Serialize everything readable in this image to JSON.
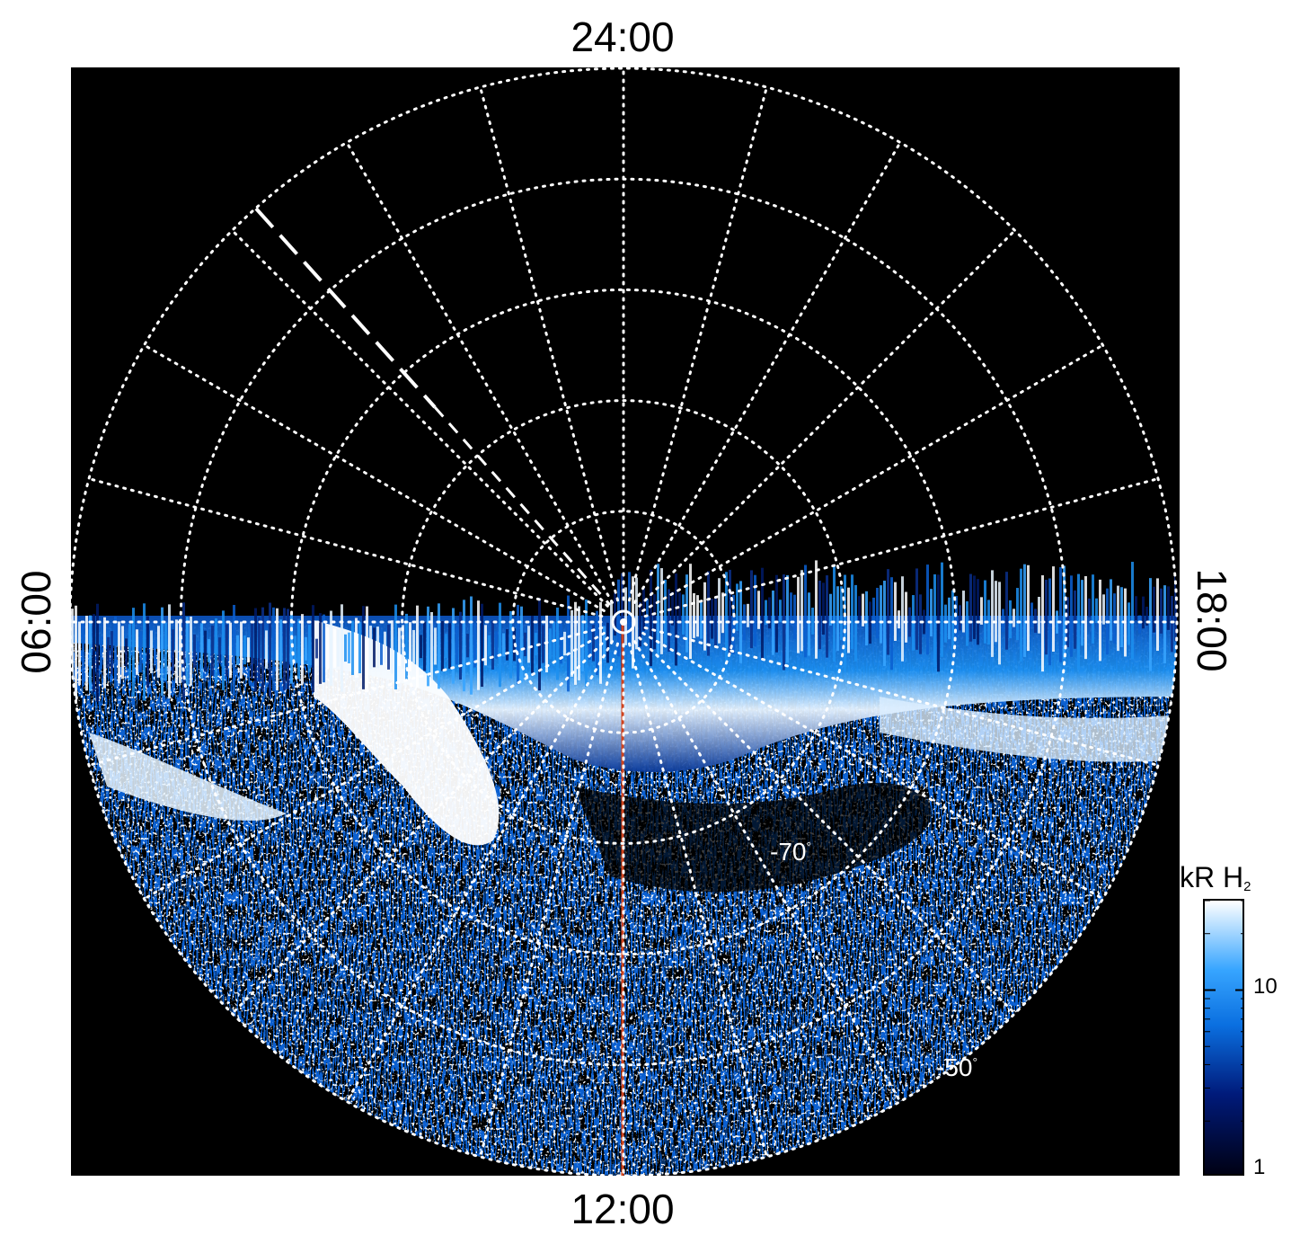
{
  "chart_data": {
    "type": "heatmap",
    "projection": "polar (south pole view)",
    "local_time_labels": {
      "top": "24:00",
      "bottom": "12:00",
      "left": "06:00",
      "right": "18:00"
    },
    "latitude_labels": [
      {
        "text": "-70",
        "unit": "°"
      },
      {
        "text": "-50",
        "unit": "°"
      }
    ],
    "grid": {
      "latitude_circles_deg": [
        -80,
        -70,
        -60,
        -50,
        -40
      ],
      "local_time_spokes_hours": [
        0,
        1,
        2,
        3,
        4,
        5,
        6,
        7,
        8,
        9,
        10,
        11,
        12,
        13,
        14,
        15,
        16,
        17,
        18,
        19,
        20,
        21,
        22,
        23
      ],
      "style": "white dotted"
    },
    "colorbar": {
      "title": "kR H",
      "title_subscript": "2",
      "scale": "log",
      "range": [
        1,
        30
      ],
      "ticks": [
        "1",
        "10"
      ]
    },
    "colors": {
      "background": "#000000",
      "low": "#000010",
      "mid": "#0a7ae8",
      "high": "#ffffff",
      "meridian_line": "#d0421c",
      "grid": "#ffffff"
    },
    "features": {
      "red_meridian_local_time": "12:00",
      "dashed_white_line_local_time": "03:00"
    }
  }
}
